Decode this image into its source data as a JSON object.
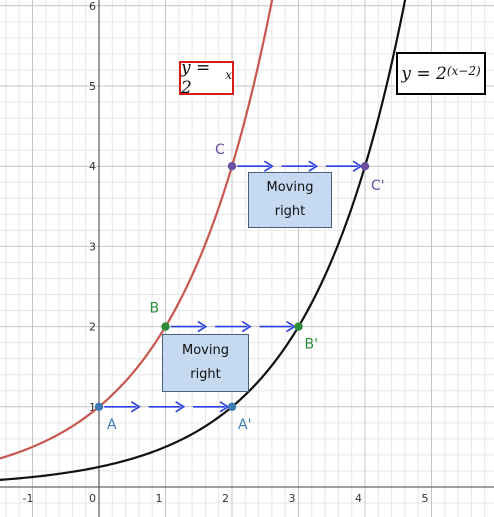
{
  "chart_data": {
    "type": "line",
    "xlim": [
      -1.5,
      6
    ],
    "ylim": [
      -0.45,
      6.3
    ],
    "x_ticks": [
      "-1",
      "0",
      "1",
      "2",
      "3",
      "4",
      "5"
    ],
    "y_ticks": [
      "1",
      "2",
      "3",
      "4",
      "5",
      "6"
    ],
    "grid": true,
    "minor_grid_step": 0.2,
    "series": [
      {
        "equation": {
          "base": "y = 2",
          "exponent": "x"
        },
        "color": "#c8574f",
        "box_color": "#d81b1b",
        "x": [
          -1.5,
          -1,
          0,
          1,
          2,
          2.5,
          2.66
        ],
        "y": [
          0.354,
          0.5,
          1,
          2,
          4,
          5.657,
          6.32
        ]
      },
      {
        "equation": {
          "base": "y = 2",
          "exponent": "(x−2)"
        },
        "color": "#111111",
        "box_color": "#000000",
        "x": [
          -1.5,
          0,
          1,
          2,
          3,
          4,
          4.5,
          4.66
        ],
        "y": [
          0.088,
          0.25,
          0.5,
          1,
          2,
          4,
          5.657,
          6.32
        ]
      }
    ],
    "points": [
      {
        "label": "A",
        "x": 0,
        "y": 1,
        "color": "#3d7ab8"
      },
      {
        "label": "A'",
        "x": 2,
        "y": 1,
        "color": "#3d7ab8"
      },
      {
        "label": "B",
        "x": 1,
        "y": 2,
        "color": "#2e8b3a"
      },
      {
        "label": "B'",
        "x": 3,
        "y": 2,
        "color": "#2e8b3a"
      },
      {
        "label": "C",
        "x": 2,
        "y": 4,
        "color": "#6a4fa3"
      },
      {
        "label": "C'",
        "x": 4,
        "y": 4,
        "color": "#6a4fa3"
      }
    ],
    "shifts": [
      {
        "from": "A",
        "to": "A'",
        "y": 1,
        "color": "#2a3fe0"
      },
      {
        "from": "B",
        "to": "B'",
        "y": 2,
        "color": "#2a3fe0"
      },
      {
        "from": "C",
        "to": "C'",
        "y": 4,
        "color": "#2a3fe0"
      }
    ],
    "annotations": [
      {
        "line1": "Moving",
        "line2": "right"
      },
      {
        "line1": "Moving",
        "line2": "right"
      }
    ]
  }
}
